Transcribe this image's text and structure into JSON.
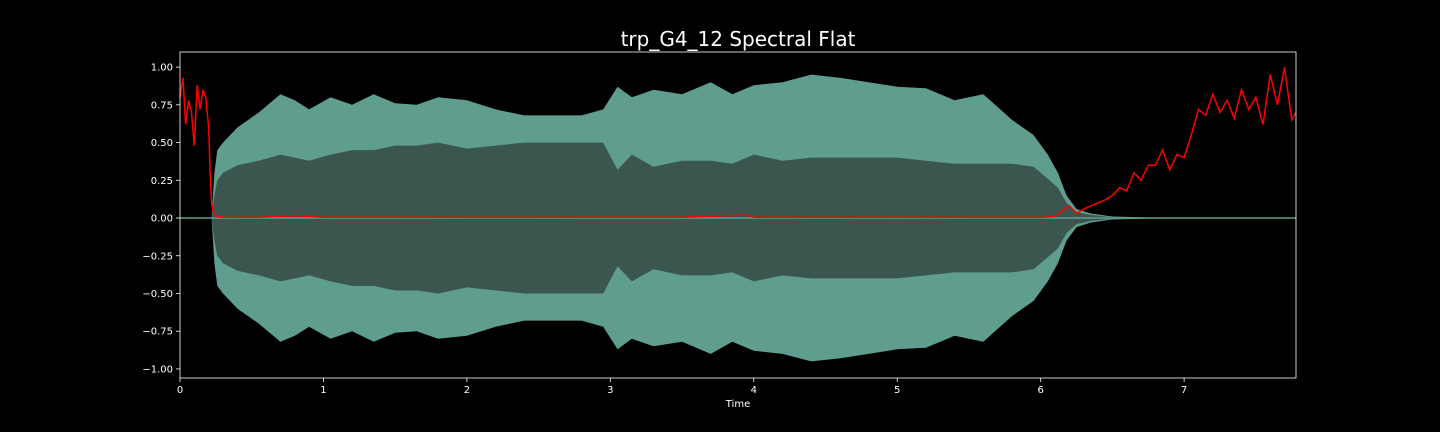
{
  "chart_data": {
    "type": "line",
    "title": "trp_G4_12 Spectral Flat",
    "xlabel": "Time",
    "ylabel": "",
    "xlim": [
      0,
      7.78
    ],
    "ylim": [
      -1.06,
      1.1
    ],
    "x_ticks": [
      0,
      1,
      2,
      3,
      4,
      5,
      6,
      7
    ],
    "y_ticks": [
      -1.0,
      -0.75,
      -0.5,
      -0.25,
      0.0,
      0.25,
      0.5,
      0.75,
      1.0
    ],
    "y_tick_labels": [
      "−1.00",
      "−0.75",
      "−0.50",
      "−0.25",
      "0.00",
      "0.25",
      "0.50",
      "0.75",
      "1.00"
    ],
    "grid": false,
    "legend": "none",
    "colors": {
      "background": "#000000",
      "axes_edge": "#ffffff",
      "waveform_outer": "#5f9e8f",
      "waveform_inner": "#3a564f",
      "spectral_flatness": "#ff0000"
    },
    "series": [
      {
        "role": "waveform envelope",
        "x": [
          0.0,
          0.22,
          0.24,
          0.26,
          0.3,
          0.4,
          0.55,
          0.7,
          0.8,
          0.9,
          1.05,
          1.2,
          1.35,
          1.5,
          1.65,
          1.8,
          2.0,
          2.2,
          2.4,
          2.6,
          2.8,
          2.95,
          3.05,
          3.15,
          3.3,
          3.5,
          3.7,
          3.85,
          4.0,
          4.2,
          4.4,
          4.6,
          4.8,
          5.0,
          5.2,
          5.4,
          5.6,
          5.8,
          5.95,
          6.05,
          6.12,
          6.18,
          6.25,
          6.35,
          6.5,
          6.7,
          6.9,
          7.1,
          7.3,
          7.5,
          7.78
        ],
        "upper": [
          0.0,
          0.0,
          0.3,
          0.45,
          0.5,
          0.6,
          0.7,
          0.82,
          0.78,
          0.72,
          0.8,
          0.75,
          0.82,
          0.76,
          0.75,
          0.8,
          0.78,
          0.72,
          0.68,
          0.68,
          0.68,
          0.72,
          0.87,
          0.8,
          0.85,
          0.82,
          0.9,
          0.82,
          0.88,
          0.9,
          0.95,
          0.93,
          0.9,
          0.87,
          0.86,
          0.78,
          0.82,
          0.65,
          0.55,
          0.42,
          0.3,
          0.15,
          0.06,
          0.03,
          0.01,
          0.005,
          0.0,
          0.0,
          0.0,
          0.0,
          0.0
        ],
        "inner": [
          0.0,
          0.0,
          0.15,
          0.25,
          0.3,
          0.35,
          0.38,
          0.42,
          0.4,
          0.38,
          0.42,
          0.45,
          0.45,
          0.48,
          0.48,
          0.5,
          0.46,
          0.48,
          0.5,
          0.5,
          0.5,
          0.5,
          0.32,
          0.42,
          0.34,
          0.38,
          0.38,
          0.36,
          0.42,
          0.38,
          0.4,
          0.4,
          0.4,
          0.4,
          0.38,
          0.36,
          0.36,
          0.36,
          0.34,
          0.26,
          0.2,
          0.1,
          0.04,
          0.02,
          0.005,
          0.002,
          0.0,
          0.0,
          0.0,
          0.0,
          0.0
        ]
      },
      {
        "name": "",
        "role": "spectral flatness",
        "x": [
          0.0,
          0.02,
          0.04,
          0.06,
          0.08,
          0.1,
          0.12,
          0.14,
          0.16,
          0.18,
          0.2,
          0.21,
          0.22,
          0.23,
          0.25,
          0.3,
          0.5,
          0.8,
          1.0,
          1.5,
          2.0,
          2.5,
          3.0,
          3.5,
          3.95,
          4.0,
          4.5,
          5.0,
          5.5,
          6.0,
          6.1,
          6.15,
          6.2,
          6.25,
          6.3,
          6.35,
          6.4,
          6.45,
          6.5,
          6.55,
          6.6,
          6.65,
          6.7,
          6.75,
          6.8,
          6.85,
          6.9,
          6.95,
          7.0,
          7.05,
          7.1,
          7.15,
          7.2,
          7.25,
          7.3,
          7.35,
          7.4,
          7.45,
          7.5,
          7.55,
          7.6,
          7.65,
          7.7,
          7.75,
          7.78
        ],
        "y": [
          0.8,
          0.93,
          0.62,
          0.78,
          0.7,
          0.48,
          0.88,
          0.72,
          0.85,
          0.8,
          0.6,
          0.3,
          0.1,
          0.05,
          0.01,
          0.005,
          0.004,
          0.015,
          0.005,
          0.005,
          0.004,
          0.004,
          0.005,
          0.005,
          0.02,
          0.005,
          0.004,
          0.005,
          0.004,
          0.004,
          0.01,
          0.05,
          0.08,
          0.03,
          0.06,
          0.08,
          0.1,
          0.12,
          0.15,
          0.2,
          0.18,
          0.3,
          0.25,
          0.35,
          0.35,
          0.45,
          0.32,
          0.42,
          0.4,
          0.55,
          0.72,
          0.68,
          0.82,
          0.7,
          0.78,
          0.66,
          0.85,
          0.72,
          0.8,
          0.62,
          0.95,
          0.75,
          1.0,
          0.65,
          0.7
        ]
      }
    ]
  }
}
